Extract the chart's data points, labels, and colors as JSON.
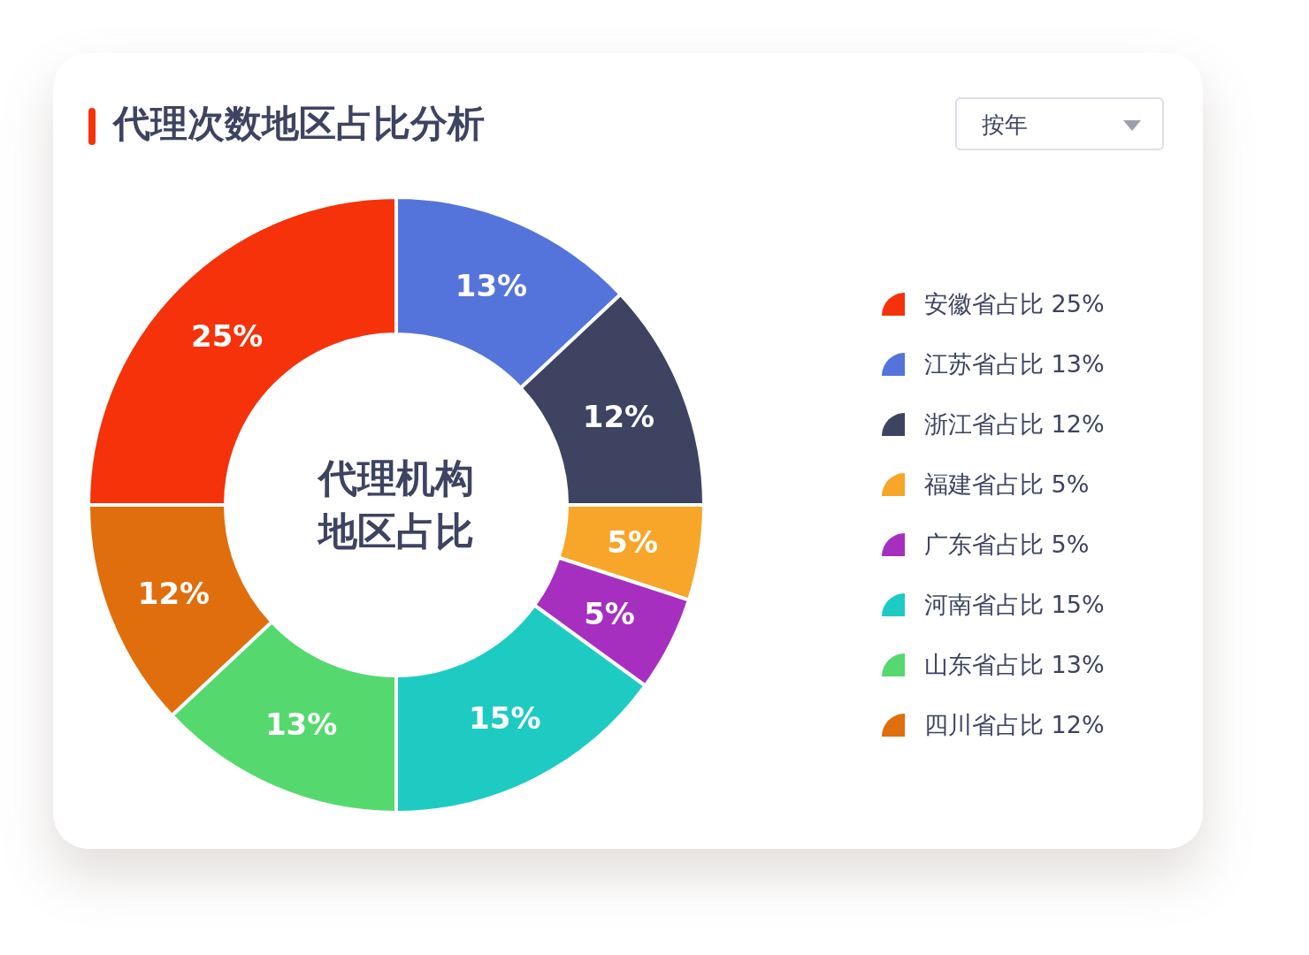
{
  "chart_data": {
    "type": "donut",
    "title": "代理次数地区占比分析",
    "categories": [
      "安徽省占比",
      "江苏省占比",
      "浙江省占比",
      "福建省占比",
      "广东省占比",
      "河南省占比",
      "山东省占比",
      "四川省占比"
    ],
    "values": [
      25,
      13,
      12,
      5,
      5,
      15,
      13,
      12
    ],
    "value_labels": [
      "25%",
      "13%",
      "12%",
      "5%",
      "5%",
      "15%",
      "13%",
      "12%"
    ],
    "colors": [
      "#f5320a",
      "#5574db",
      "#3d4360",
      "#f7a62a",
      "#a72fbf",
      "#1ecbc3",
      "#55d96f",
      "#e06e0c"
    ],
    "legend": "right",
    "annotations": [
      "代理机构",
      "地区占比",
      "按年"
    ]
  }
}
